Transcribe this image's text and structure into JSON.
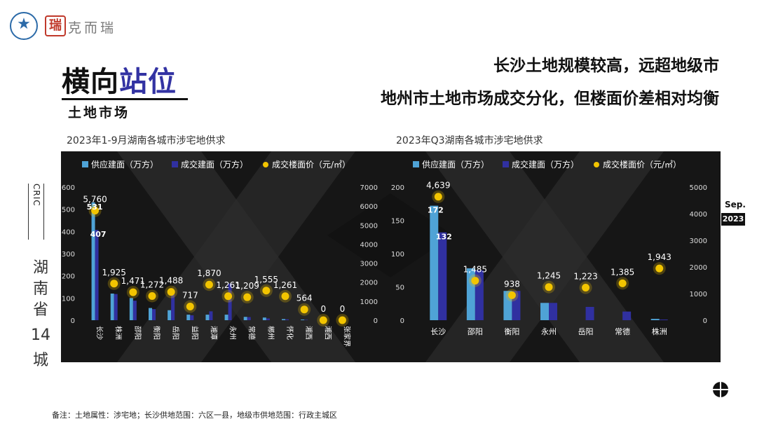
{
  "header": {
    "brand_name": "克而瑞",
    "seal_char": "瑞",
    "section_title_dark": "横向",
    "section_title_accent": "站位",
    "section_subtitle": "土地市场",
    "headline_1": "长沙土地规模较高，远超地级市",
    "headline_2": "地州市土地市场成交分化，但楼面价差相对均衡"
  },
  "side": {
    "cric_text": "CRIC",
    "vertical_city": [
      "湖",
      "南",
      "省",
      "14",
      "城"
    ],
    "month_label": "Sep.",
    "year_label": "2023"
  },
  "footnote": "备注：土地属性：涉宅地；长沙供地范围：六区一县，地级市供地范围：行政主城区",
  "colors": {
    "supply": "#4fa3d6",
    "deal": "#3030a0",
    "price": "#f2c400",
    "panel_bg": "#161616",
    "accent": "#3333a3"
  },
  "legend": {
    "supply": "供应建面（万方）",
    "deal": "成交建面（万方）",
    "price": "成交楼面价（元/㎡）"
  },
  "chart_data": [
    {
      "type": "bar",
      "title": "2023年1-9月湖南各城市涉宅地供求",
      "categories": [
        "长沙",
        "株洲",
        "邵阳",
        "衡阳",
        "岳阳",
        "益阳",
        "湘潭",
        "永州",
        "常德",
        "郴州",
        "怀化",
        "湘西",
        "湘西",
        "张家界"
      ],
      "series": [
        {
          "name": "供应建面（万方）",
          "axis": "left",
          "values": [
            531,
            120,
            100,
            55,
            45,
            25,
            25,
            25,
            15,
            12,
            5,
            3,
            2,
            1
          ]
        },
        {
          "name": "成交建面（万方）",
          "axis": "left",
          "values": [
            407,
            118,
            88,
            50,
            120,
            22,
            40,
            165,
            14,
            8,
            4,
            2,
            0,
            0
          ]
        },
        {
          "name": "成交楼面价（元/㎡）",
          "axis": "right",
          "type": "scatter",
          "values": [
            5760,
            1925,
            1471,
            1272,
            1488,
            717,
            1870,
            1261,
            1209,
            1555,
            1261,
            564,
            0,
            0
          ]
        }
      ],
      "left_axis": {
        "ticks": [
          0,
          100,
          200,
          300,
          400,
          500,
          600
        ],
        "range": [
          0,
          600
        ]
      },
      "right_axis": {
        "ticks": [
          0,
          1000,
          2000,
          3000,
          4000,
          5000,
          6000,
          7000
        ],
        "range": [
          0,
          7000
        ]
      },
      "data_labels_left": [
        "531",
        "407"
      ],
      "price_labels": [
        "5,760",
        "1,925",
        "1,471",
        "1,272",
        "1,488",
        "717",
        "1,870",
        "1,261",
        "1,209",
        "1,555",
        "1,261",
        "564",
        "0",
        "0"
      ]
    },
    {
      "type": "bar",
      "title": "2023年Q3湖南各城市涉宅地供求",
      "categories": [
        "长沙",
        "邵阳",
        "衡阳",
        "永州",
        "岳阳",
        "常德",
        "株洲"
      ],
      "series": [
        {
          "name": "供应建面（万方）",
          "axis": "left",
          "values": [
            172,
            78,
            44,
            26,
            0,
            0,
            2
          ]
        },
        {
          "name": "成交建面（万方）",
          "axis": "left",
          "values": [
            132,
            75,
            44,
            26,
            20,
            13,
            1
          ]
        },
        {
          "name": "成交楼面价（元/㎡）",
          "axis": "right",
          "type": "scatter",
          "values": [
            4639,
            1485,
            938,
            1245,
            1223,
            1385,
            1943
          ]
        }
      ],
      "left_axis": {
        "ticks": [
          0,
          50,
          100,
          150,
          200
        ],
        "range": [
          0,
          200
        ]
      },
      "right_axis": {
        "ticks": [
          0,
          1000,
          2000,
          3000,
          4000,
          5000
        ],
        "range": [
          0,
          5000
        ]
      },
      "data_labels_left": [
        "172",
        "132"
      ],
      "price_labels": [
        "4,639",
        "1,485",
        "938",
        "1,245",
        "1,223",
        "1,385",
        "1,943"
      ]
    }
  ]
}
